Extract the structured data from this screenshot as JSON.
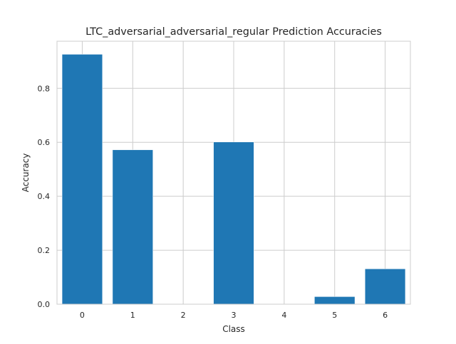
{
  "chart_data": {
    "type": "bar",
    "title": "LTC_adversarial_adversarial_regular Prediction Accuracies",
    "xlabel": "Class",
    "ylabel": "Accuracy",
    "categories": [
      "0",
      "1",
      "2",
      "3",
      "4",
      "5",
      "6"
    ],
    "values": [
      0.926,
      0.572,
      0.0,
      0.601,
      0.0,
      0.028,
      0.131
    ],
    "ylim": [
      0,
      0.9745
    ],
    "xlim": [
      -0.5,
      6.5
    ],
    "yticks": [
      0.0,
      0.2,
      0.4,
      0.6,
      0.8
    ],
    "ytick_labels": [
      "0.0",
      "0.2",
      "0.4",
      "0.6",
      "0.8"
    ],
    "grid": true,
    "bar_color": "#1f77b4",
    "grid_color": "#cccccc"
  }
}
